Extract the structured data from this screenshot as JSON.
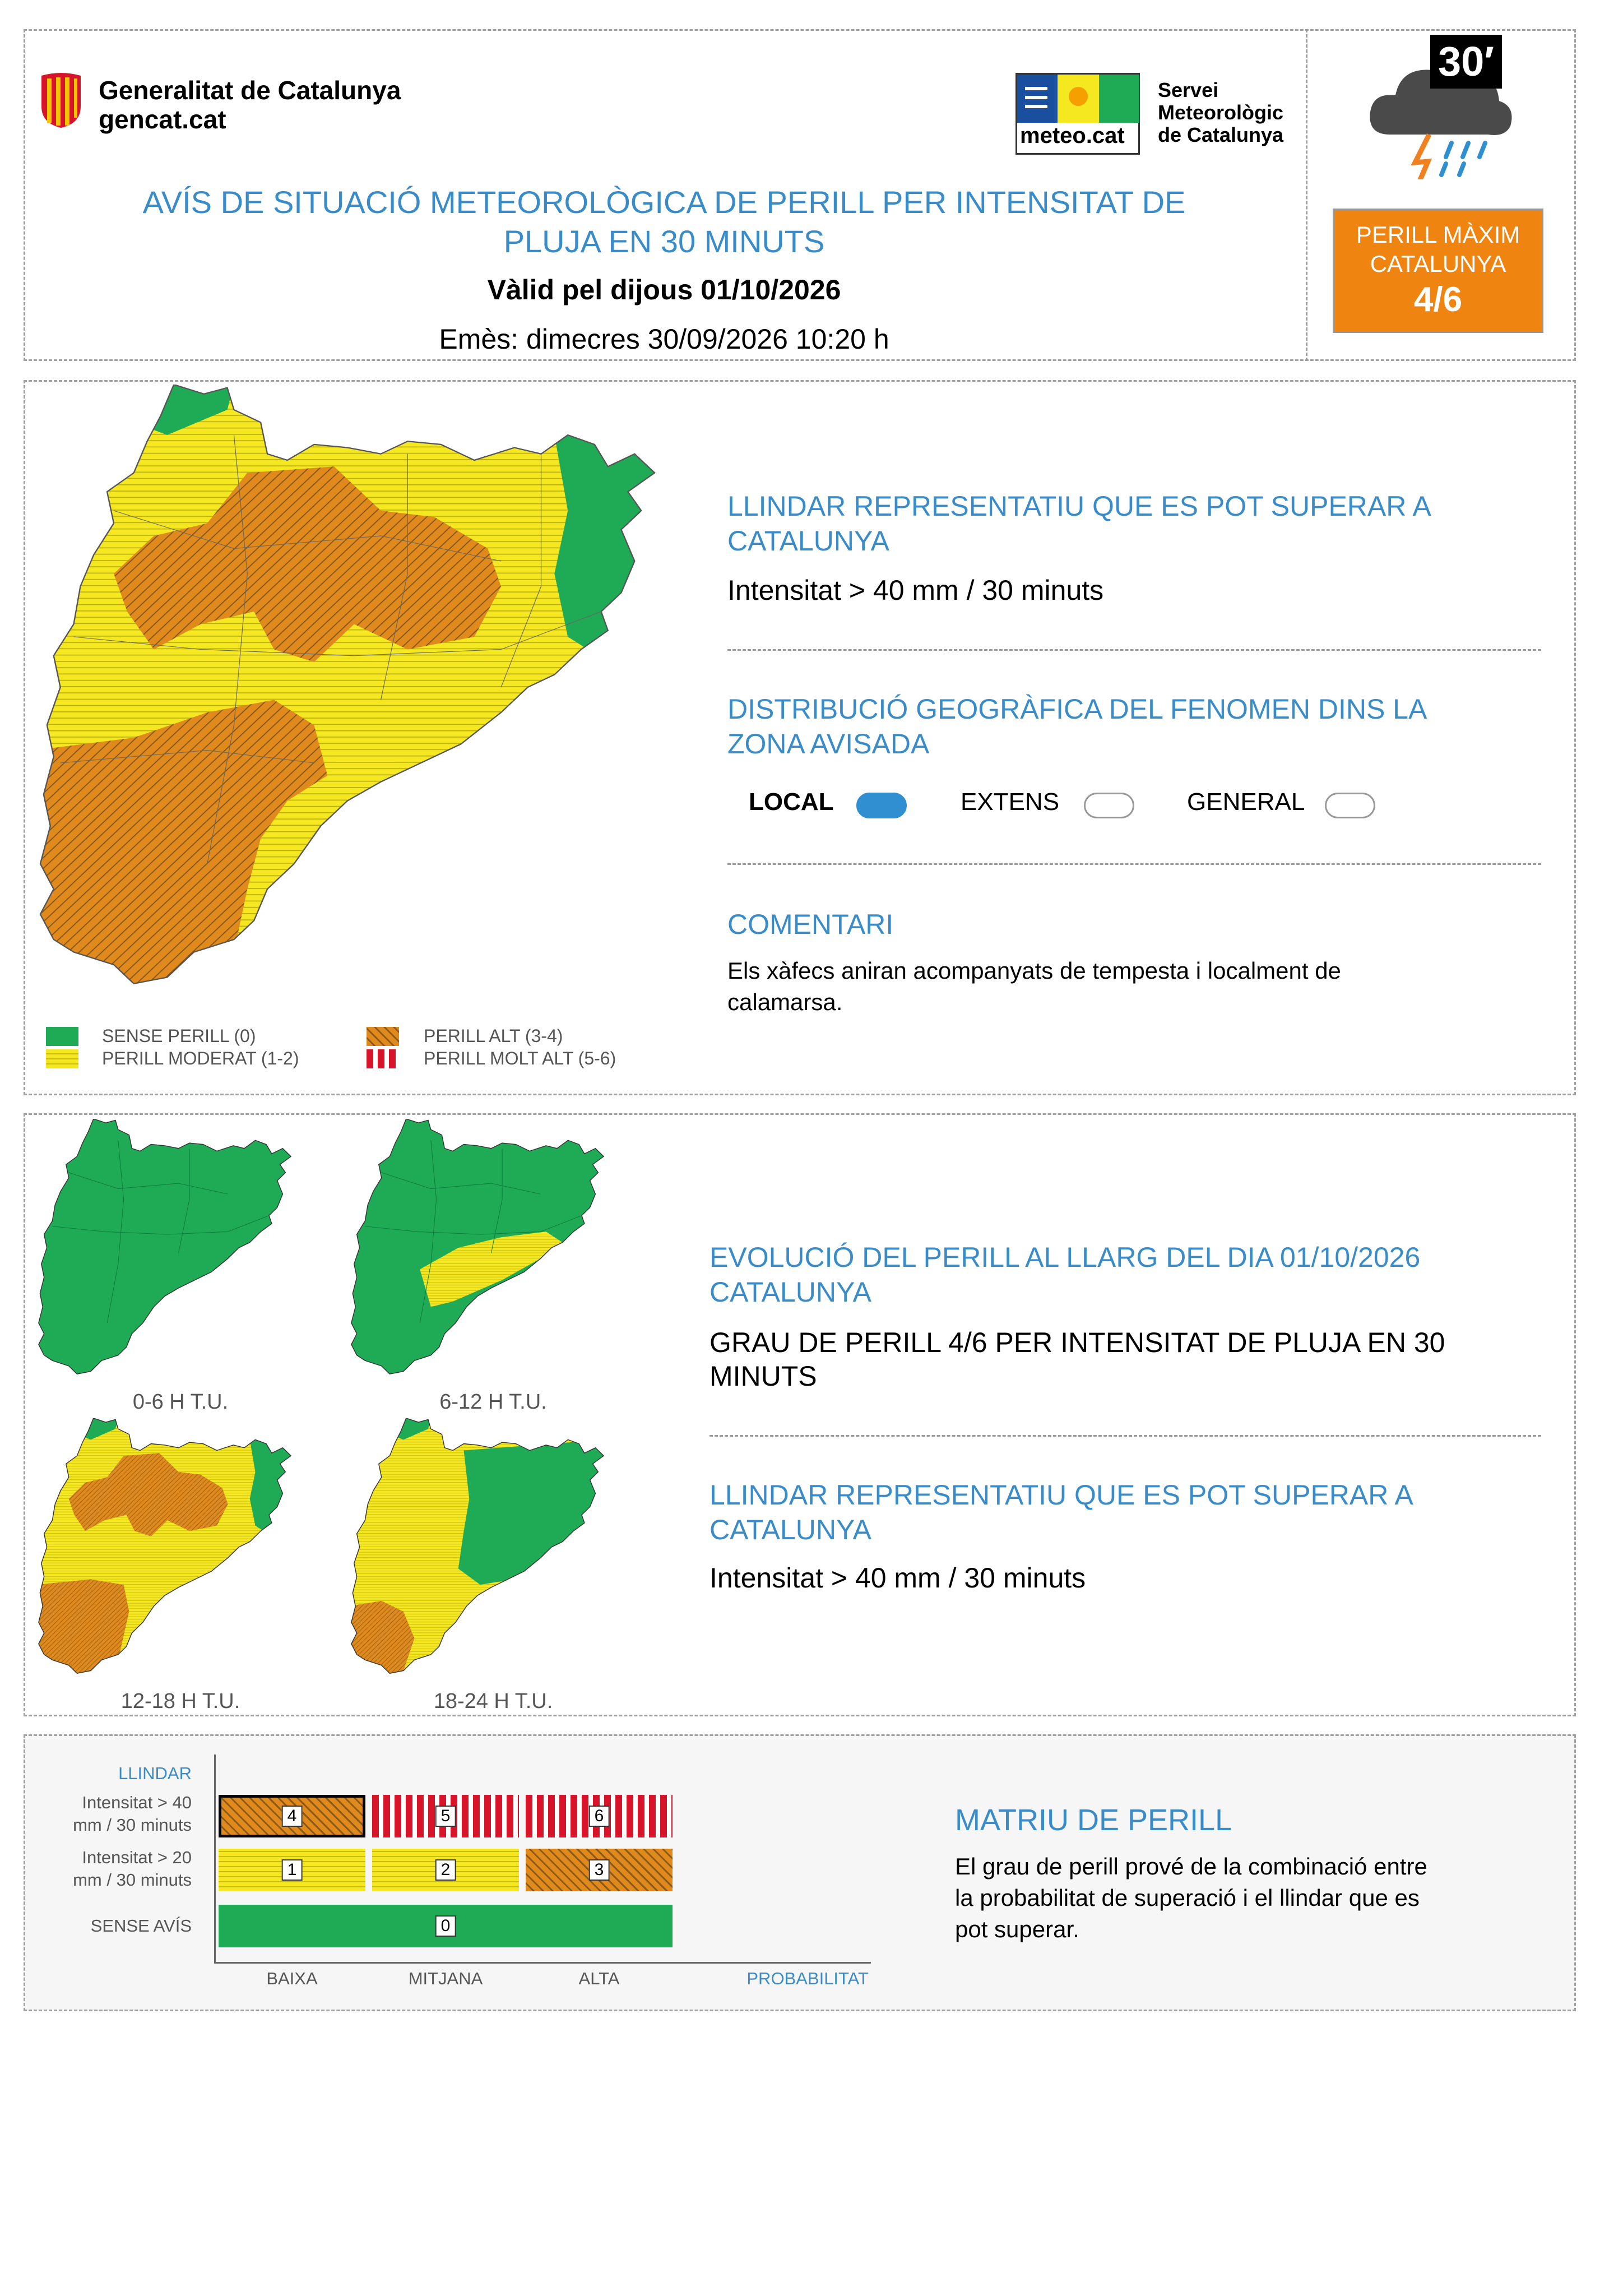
{
  "header": {
    "gencat_name": "Generalitat de Catalunya",
    "gencat_url": "gencat.cat",
    "meteo_logo": "meteo.cat",
    "servei_line1": "Servei",
    "servei_line2": "Meteorològic",
    "servei_line3": "de Catalunya",
    "title_line1": "AVÍS DE SITUACIÓ METEOROLÒGICA DE PERILL PER INTENSITAT DE",
    "title_line2": "PLUJA EN 30 MINUTS",
    "valid": "Vàlid pel dijous 01/10/2026",
    "issued": "Emès: dimecres 30/09/2026 10:20 h",
    "icon_badge": "30′",
    "danger_label_line1": "PERILL MÀXIM",
    "danger_label_line2": "CATALUNYA",
    "danger_value": "4/6"
  },
  "section1": {
    "threshold_title_line1": "LLINDAR REPRESENTATIU QUE ES POT SUPERAR A",
    "threshold_title_line2": "CATALUNYA",
    "threshold_value": "Intensitat > 40 mm / 30 minuts",
    "distribution_title_line1": "DISTRIBUCIÓ GEOGRÀFICA DEL FENOMEN DINS LA",
    "distribution_title_line2": "ZONA AVISADA",
    "distribution_options": [
      {
        "label": "LOCAL",
        "selected": true
      },
      {
        "label": "EXTENS",
        "selected": false
      },
      {
        "label": "GENERAL",
        "selected": false
      }
    ],
    "comment_title": "COMENTARI",
    "comment_line1": "Els xàfecs aniran acompanyats de tempesta i localment de",
    "comment_line2": "calamarsa.",
    "legend": [
      {
        "label": "SENSE PERILL (0)",
        "color": "#1faa55"
      },
      {
        "label": "PERILL MODERAT (1-2)",
        "color": "#f5e820"
      },
      {
        "label": "PERILL ALT (3-4)",
        "color": "#e08a1e"
      },
      {
        "label": "PERILL MOLT ALT (5-6)",
        "color": "#d8142a"
      }
    ]
  },
  "section2": {
    "maps": [
      {
        "label": "0-6 H T.U."
      },
      {
        "label": "6-12 H T.U."
      },
      {
        "label": "12-18 H T.U."
      },
      {
        "label": "18-24 H T.U."
      }
    ],
    "evolution_title_line1": "EVOLUCIÓ DEL PERILL AL LLARG DEL DIA 01/10/2026",
    "evolution_title_line2": "CATALUNYA",
    "grade_line1": "GRAU DE PERILL 4/6 PER INTENSITAT DE PLUJA EN 30",
    "grade_line2": "MINUTS",
    "threshold_title_line1": "LLINDAR REPRESENTATIU QUE ES POT SUPERAR A",
    "threshold_title_line2": "CATALUNYA",
    "threshold_value": "Intensitat > 40 mm / 30 minuts"
  },
  "matrix": {
    "llindar_label": "LLINDAR",
    "row1_line1": "Intensitat > 40",
    "row1_line2": "mm / 30 minuts",
    "row2_line1": "Intensitat > 20",
    "row2_line2": "mm / 30 minuts",
    "row3": "SENSE AVÍS",
    "col_baixa": "BAIXA",
    "col_mitjana": "MITJANA",
    "col_alta": "ALTA",
    "probabilitat_label": "PROBABILITAT",
    "cells": {
      "c4": "4",
      "c5": "5",
      "c6": "6",
      "c1": "1",
      "c2": "2",
      "c3": "3",
      "c0": "0"
    },
    "title": "MATRIU DE PERILL",
    "text_line1": "El grau de perill prové de la combinació entre",
    "text_line2": "la probabilitat de superació i el llindar que es",
    "text_line3": "pot superar."
  }
}
